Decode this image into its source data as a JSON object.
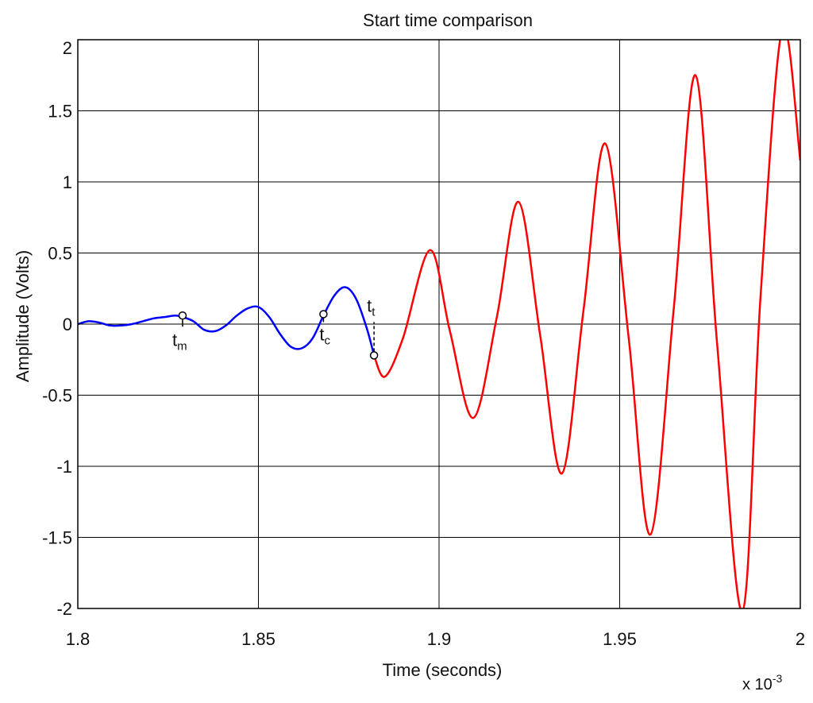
{
  "chart_data": {
    "type": "line",
    "title": "Start time comparison",
    "xlabel": "Time (seconds)",
    "ylabel": "Amplitude (Volts)",
    "x_multiplier": "x 10",
    "x_multiplier_exp": "-3",
    "xlim": [
      1.8,
      2.0
    ],
    "ylim": [
      -2,
      2
    ],
    "grid": true,
    "xticks": [
      1.8,
      1.85,
      1.9,
      1.95,
      2.0
    ],
    "xtick_labels": [
      "1.8",
      "1.85",
      "1.9",
      "1.95",
      "2"
    ],
    "yticks": [
      2,
      1.5,
      1,
      0.5,
      0,
      -0.5,
      -1,
      -1.5,
      -2
    ],
    "ytick_labels": [
      "2",
      "1.5",
      "1",
      "0.5",
      "0",
      "-0.5",
      "-1",
      "-1.5",
      "-2"
    ],
    "colors": {
      "pre_signal": "#0000ff",
      "signal": "#ff0000",
      "grid": "#000000"
    },
    "series": [
      {
        "color": "#0000ff",
        "x": [
          1.8,
          1.803,
          1.806,
          1.809,
          1.812,
          1.815,
          1.818,
          1.821,
          1.824,
          1.827,
          1.829,
          1.832,
          1.835,
          1.838,
          1.841,
          1.844,
          1.847,
          1.85,
          1.853,
          1.856,
          1.859,
          1.862,
          1.865,
          1.868,
          1.871,
          1.874,
          1.877,
          1.88,
          1.882
        ],
        "y": [
          0.0,
          0.02,
          0.01,
          -0.01,
          -0.01,
          0.0,
          0.02,
          0.04,
          0.05,
          0.06,
          0.05,
          0.02,
          -0.04,
          -0.05,
          -0.01,
          0.06,
          0.11,
          0.12,
          0.05,
          -0.07,
          -0.16,
          -0.17,
          -0.1,
          0.06,
          0.2,
          0.26,
          0.18,
          -0.03,
          -0.22
        ]
      },
      {
        "color": "#ff0000",
        "x": [
          1.882,
          1.885,
          1.89,
          1.8975,
          1.903,
          1.9095,
          1.916,
          1.922,
          1.928,
          1.934,
          1.94,
          1.946,
          1.9525,
          1.9585,
          1.965,
          1.971,
          1.977,
          1.984,
          1.989,
          1.995,
          2.0
        ],
        "y": [
          -0.22,
          -0.37,
          -0.1,
          0.52,
          -0.05,
          -0.66,
          0.05,
          0.86,
          -0.08,
          -1.05,
          0.1,
          1.27,
          -0.1,
          -1.48,
          0.12,
          1.75,
          -0.15,
          -2.02,
          0.2,
          2.08,
          1.15
        ]
      }
    ],
    "markers": [
      {
        "label": "t",
        "sub": "m",
        "x": 1.829,
        "y": 0.06
      },
      {
        "label": "t",
        "sub": "c",
        "x": 1.868,
        "y": 0.07
      },
      {
        "label": "t",
        "sub": "t",
        "x": 1.882,
        "y": -0.22
      }
    ]
  }
}
